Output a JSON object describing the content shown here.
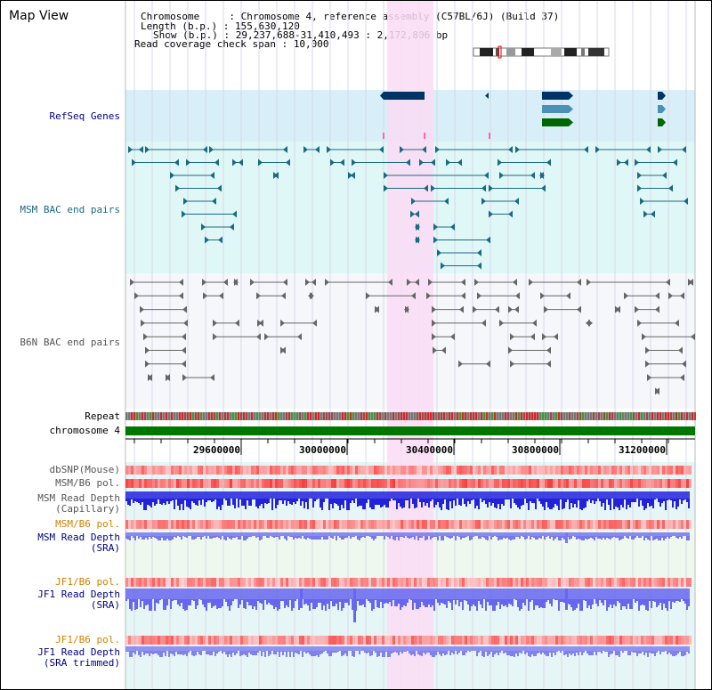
{
  "header": {
    "title": "Map View",
    "chromosome_label": "Chromosome     : ",
    "chromosome_value": "Chromosome 4, reference assembly (C57BL/6J) (Build 37)",
    "length_label": "Length (b.p.) : ",
    "length_value": "155,630,120",
    "show_label": "Show (b.p.) : ",
    "show_value": "29,237,688-31,410,493 : 2,172,806 bp",
    "coverage_label": "Read coverage check span : ",
    "coverage_value": "10,000"
  },
  "tracks": {
    "refseq": "RefSeq Genes",
    "msm_bac": "MSM BAC end pairs",
    "b6n_bac": "B6N BAC end pairs",
    "repeat": "Repeat",
    "chromosome": "chromosome 4",
    "dbsnp": "dbSNP(Mouse)",
    "msm_b6_pol_1": "MSM/B6 pol.",
    "msm_read_depth_cap_1": "MSM Read Depth",
    "msm_read_depth_cap_2": "(Capillary)",
    "msm_b6_pol_2": "MSM/B6 pol.",
    "msm_read_depth_sra_1": "MSM Read Depth",
    "msm_read_depth_sra_2": "(SRA)",
    "jf1_b6_pol_1": "JF1/B6 pol.",
    "jf1_read_depth_sra_1": "JF1 Read Depth",
    "jf1_read_depth_sra_2": "(SRA)",
    "jf1_b6_pol_2": "JF1/B6 pol.",
    "jf1_read_depth_trim_1": "JF1 Read Depth",
    "jf1_read_depth_trim_2": "(SRA trimmed)"
  },
  "axis": {
    "ticks": [
      "29600000",
      "30000000",
      "30400000",
      "30800000",
      "31200000"
    ]
  },
  "colors": {
    "highlight": "#fadcf5",
    "refseq_bg": "#d8eef8",
    "msm_bg": "#e0f7f7",
    "b6n_bg": "#f5f7fb",
    "navy": "#003366",
    "teal": "#1a6a80",
    "green": "#006600",
    "depth_blue": "#2222dd",
    "depth_light": "#7777ee"
  }
}
